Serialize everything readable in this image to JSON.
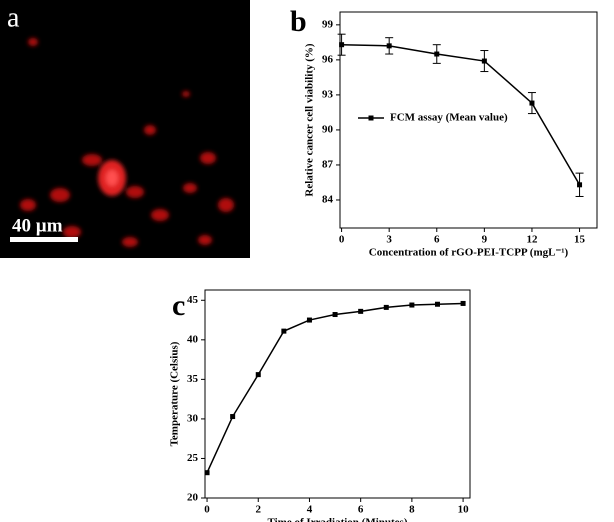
{
  "panel_a": {
    "label": "a",
    "scale_bar": "40 µm"
  },
  "chart_data": [
    {
      "type": "line",
      "panel_label": "b",
      "x_label": "Concentration of rGO-PEI-TCPP (mgL⁻¹)",
      "y_label": "Relative cancer cell viability (%)",
      "x": [
        0,
        3,
        6,
        9,
        12,
        15
      ],
      "series": [
        {
          "name": "FCM assay (Mean value)",
          "color": "#000000",
          "values": [
            97.3,
            97.2,
            96.5,
            95.9,
            92.3,
            85.3
          ],
          "errors": [
            0.9,
            0.7,
            0.8,
            0.9,
            0.9,
            1.0
          ]
        }
      ],
      "xlim": [
        -0.1,
        16.1
      ],
      "xticks": [
        0,
        3,
        6,
        9,
        12,
        15
      ],
      "ylim": [
        81.6,
        100.1
      ],
      "yticks": [
        84,
        87,
        90,
        93,
        96,
        99
      ],
      "legend": "center left"
    },
    {
      "type": "line",
      "panel_label": "c",
      "x_label": "Time of Irradiation (Minutes)",
      "y_label": "Temperature (Celsius)",
      "x": [
        0,
        1,
        2,
        3,
        4,
        5,
        6,
        7,
        8,
        9,
        10
      ],
      "series": [
        {
          "color": "#000000",
          "values": [
            23.2,
            30.3,
            35.6,
            41.1,
            42.5,
            43.2,
            43.6,
            44.1,
            44.4,
            44.5,
            44.6
          ]
        }
      ],
      "xlim": [
        -0.08,
        10.27
      ],
      "xticks": [
        0,
        2,
        4,
        6,
        8,
        10
      ],
      "ylim": [
        20,
        46.3
      ],
      "yticks": [
        20,
        25,
        30,
        35,
        40,
        45
      ]
    }
  ]
}
